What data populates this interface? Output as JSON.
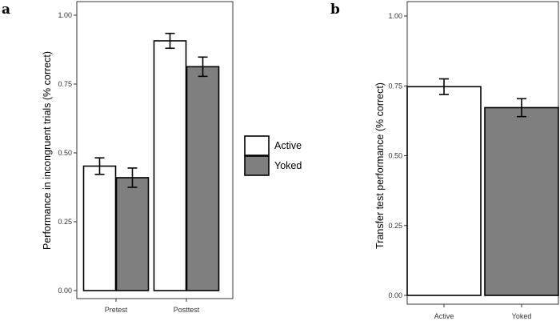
{
  "colors": {
    "active": "#ffffff",
    "yoked": "#7f7f7f",
    "edge": "#000000",
    "panel": "#333333"
  },
  "legend": {
    "items": [
      "Active",
      "Yoked"
    ]
  },
  "chart_data": [
    {
      "panel_label": "a",
      "type": "bar",
      "categories": [
        "Pretest",
        "Posttest"
      ],
      "series": [
        {
          "name": "Active",
          "values": [
            0.452,
            0.907
          ],
          "error": [
            0.03,
            0.027
          ]
        },
        {
          "name": "Yoked",
          "values": [
            0.41,
            0.813
          ],
          "error": [
            0.035,
            0.035
          ]
        }
      ],
      "ylabel": "Performance in incongruent trials (% correct)",
      "xlabel": "",
      "ylim": [
        0,
        1.0
      ],
      "yticks": [
        "0.00",
        "0.25",
        "0.50",
        "0.75",
        "1.00"
      ],
      "yticks_values": [
        0,
        0.25,
        0.5,
        0.75,
        1.0
      ],
      "grid": false,
      "legend_position": "right"
    },
    {
      "panel_label": "b",
      "type": "bar",
      "categories": [
        "Active",
        "Yoked"
      ],
      "series": [
        {
          "name": "Transfer",
          "values": [
            0.747,
            0.672
          ],
          "error": [
            0.028,
            0.032
          ]
        }
      ],
      "ylabel": "Transfer test performance (% correct)",
      "xlabel": "",
      "ylim": [
        0,
        1.0
      ],
      "yticks": [
        "0.00",
        "0.25",
        "0.50",
        "0.75",
        "1.00"
      ],
      "yticks_values": [
        0,
        0.25,
        0.5,
        0.75,
        1.0
      ],
      "grid": false
    }
  ]
}
